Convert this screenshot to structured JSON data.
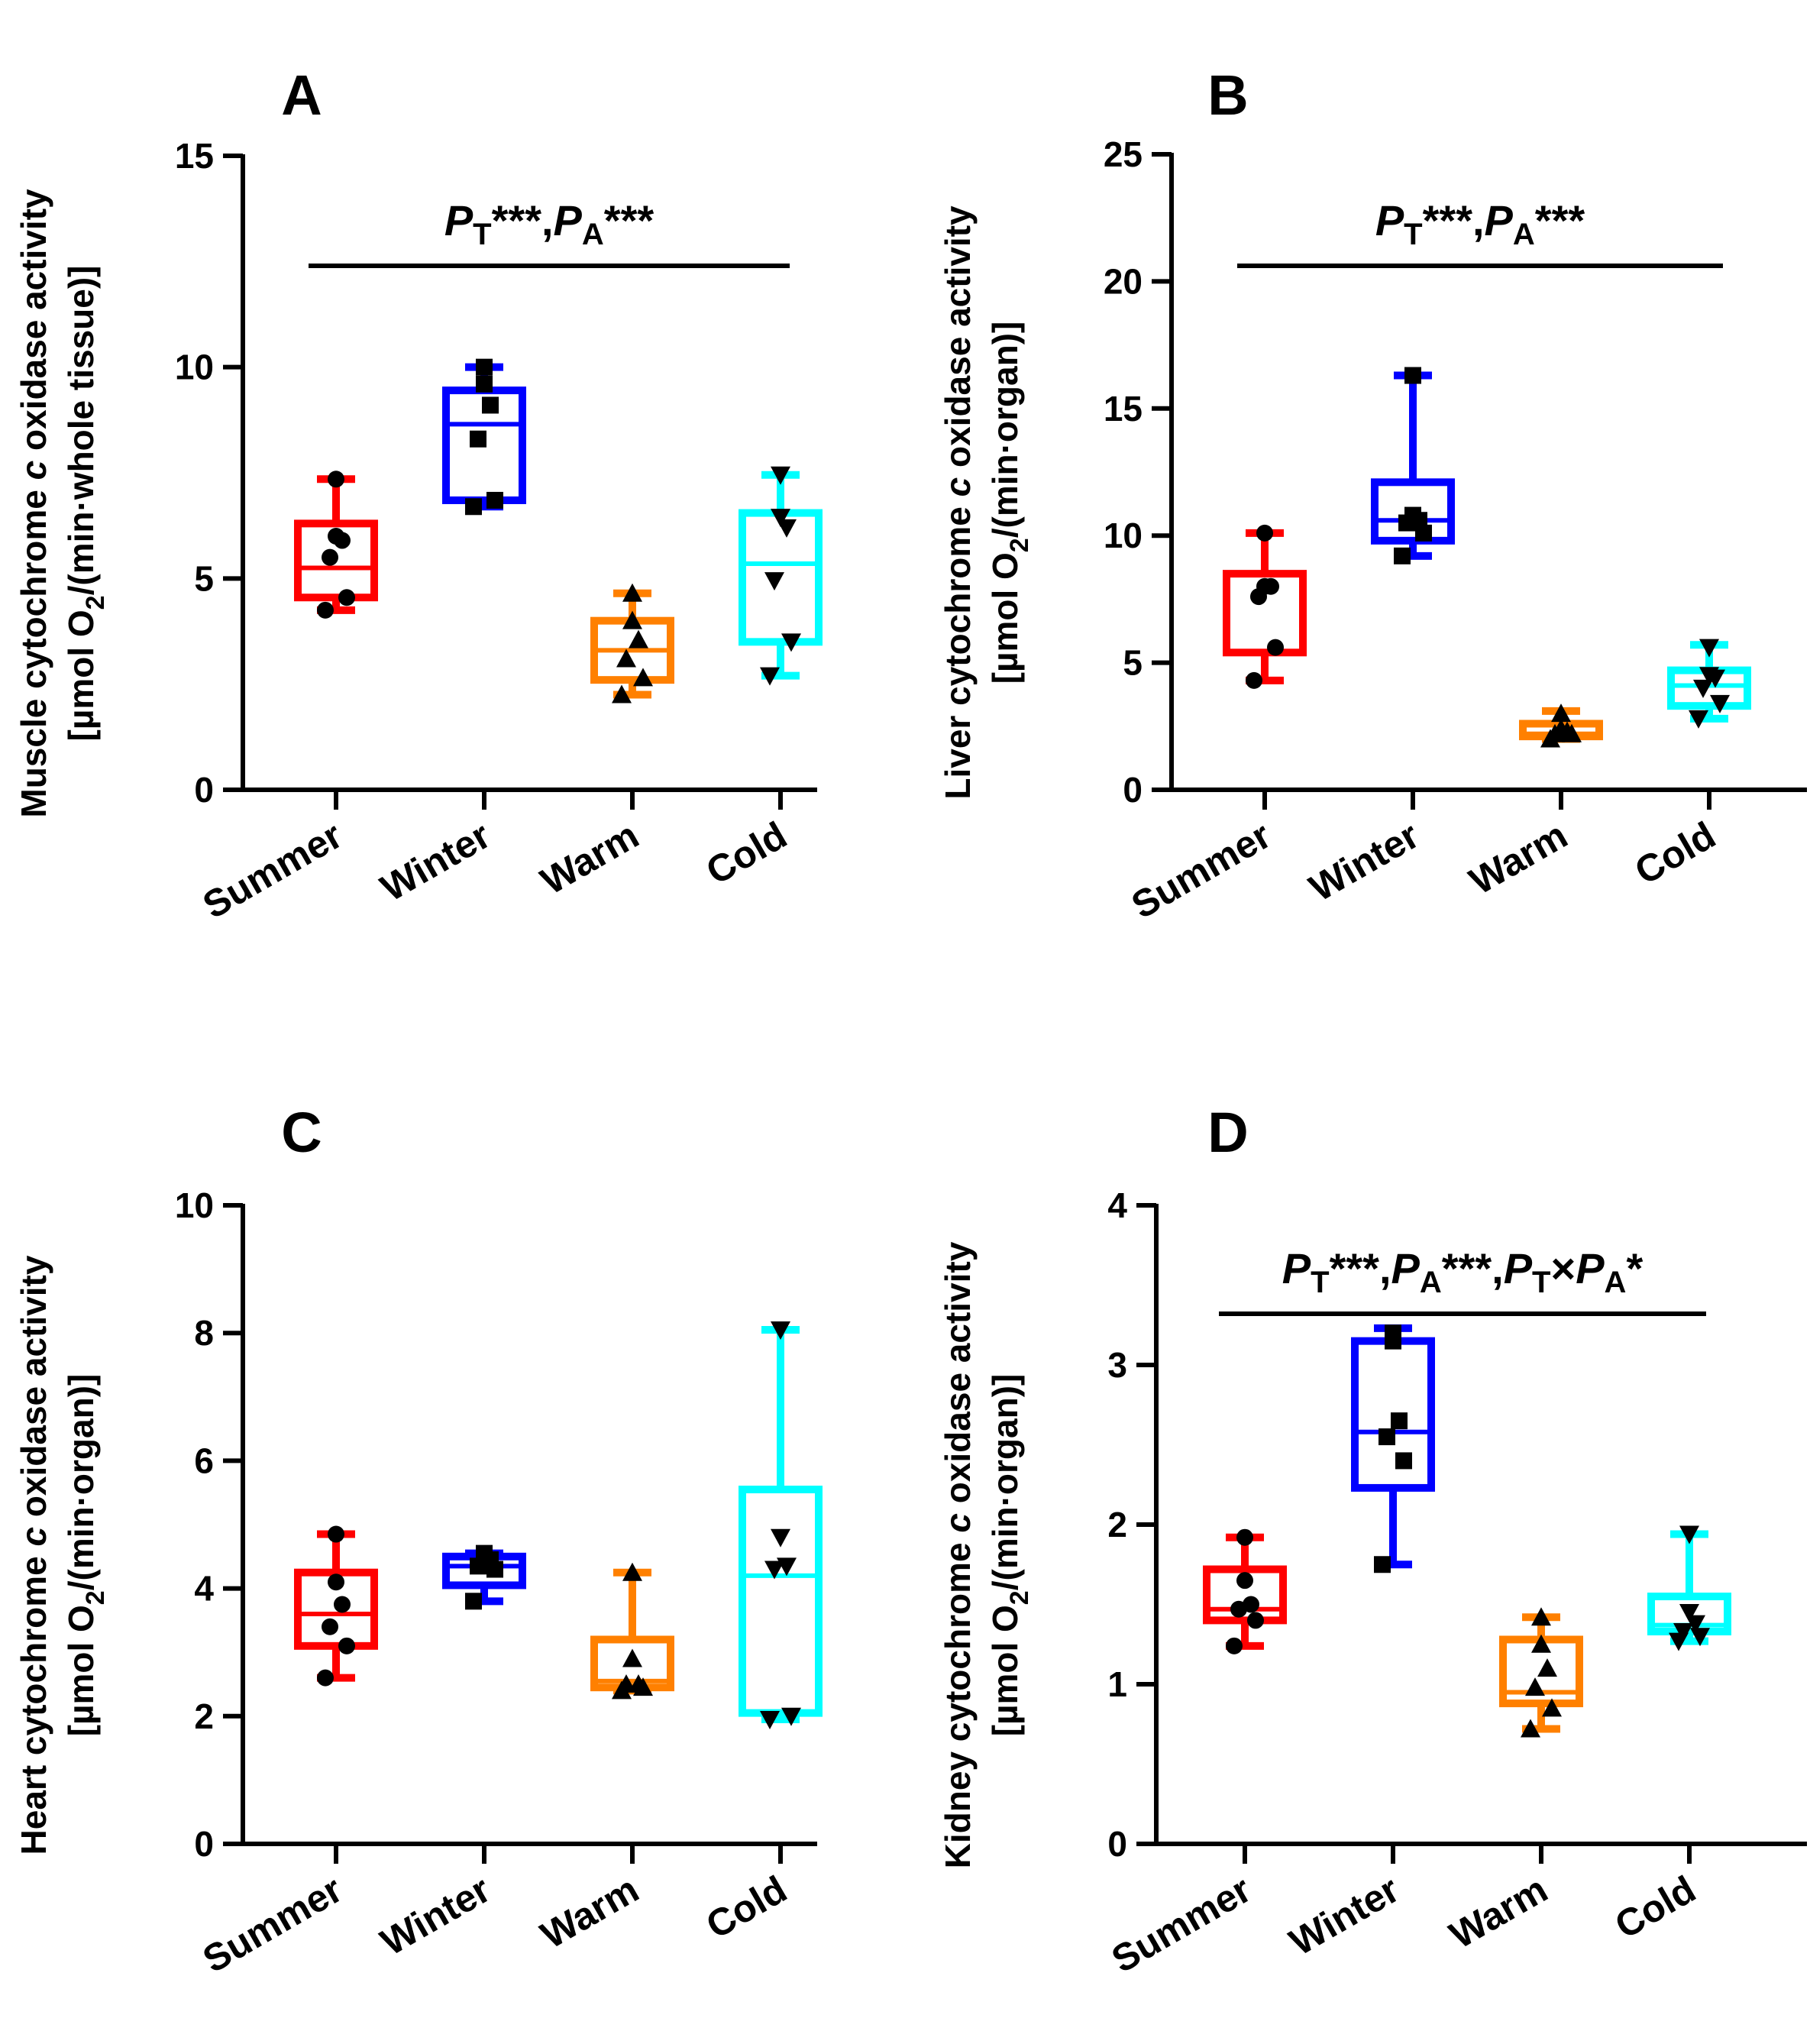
{
  "chart_data": [
    {
      "type": "box",
      "panel": "A",
      "ylabel": {
        "line1_pre": "Muscle cytochrome ",
        "line1_italic": "c",
        "line1_post": " oxidase activity",
        "line2_pre": "[µmol O",
        "line2_sub": "2",
        "line2_post": "/(min·whole tissue)]"
      },
      "ylim": [
        0,
        15
      ],
      "yticks": [
        "0",
        "5",
        "10",
        "15"
      ],
      "categories": [
        "Summer",
        "Winter",
        "Warm",
        "Cold"
      ],
      "significance": {
        "parts": [
          [
            "P",
            "T",
            "***,"
          ],
          [
            "P",
            "A",
            "***"
          ]
        ]
      },
      "groups": [
        {
          "name": "Summer",
          "color": "#ff0000",
          "marker": "circle",
          "min": 4.25,
          "q1": 4.55,
          "median": 5.25,
          "q3": 6.3,
          "max": 7.35,
          "points": [
            4.25,
            4.55,
            5.5,
            5.9,
            6.0,
            7.35
          ]
        },
        {
          "name": "Winter",
          "color": "#0000ff",
          "marker": "square",
          "min": 6.7,
          "q1": 6.85,
          "median": 8.65,
          "q3": 9.45,
          "max": 10.0,
          "points": [
            6.7,
            6.85,
            8.3,
            9.1,
            9.6,
            10.0
          ]
        },
        {
          "name": "Warm",
          "color": "#ff8000",
          "marker": "triangle-up",
          "min": 2.25,
          "q1": 2.6,
          "median": 3.3,
          "q3": 4.0,
          "max": 4.65,
          "points": [
            2.25,
            2.65,
            3.1,
            3.55,
            4.0,
            4.65
          ]
        },
        {
          "name": "Cold",
          "color": "#00ffff",
          "marker": "triangle-down",
          "min": 2.7,
          "q1": 3.5,
          "median": 5.35,
          "q3": 6.55,
          "max": 7.45,
          "points": [
            2.7,
            3.5,
            4.95,
            6.2,
            6.45,
            7.45
          ]
        }
      ]
    },
    {
      "type": "box",
      "panel": "B",
      "ylabel": {
        "line1_pre": "Liver cytochrome ",
        "line1_italic": "c",
        "line1_post": " oxidase activity",
        "line2_pre": "[µmol O",
        "line2_sub": "2",
        "line2_post": "/(min·organ)]"
      },
      "ylim": [
        0,
        25
      ],
      "yticks": [
        "0",
        "5",
        "10",
        "15",
        "20",
        "25"
      ],
      "categories": [
        "Summer",
        "Winter",
        "Warm",
        "Cold"
      ],
      "significance": {
        "parts": [
          [
            "P",
            "T",
            "***,"
          ],
          [
            "P",
            "A",
            "***"
          ]
        ]
      },
      "groups": [
        {
          "name": "Summer",
          "color": "#ff0000",
          "marker": "circle",
          "min": 4.3,
          "q1": 5.4,
          "median": 5.4,
          "q3": 8.5,
          "max": 10.1,
          "points": [
            4.3,
            5.6,
            7.6,
            8.0,
            8.0,
            10.1
          ]
        },
        {
          "name": "Winter",
          "color": "#0000ff",
          "marker": "square",
          "min": 9.2,
          "q1": 9.8,
          "median": 10.6,
          "q3": 12.1,
          "max": 16.3,
          "points": [
            9.2,
            10.1,
            10.5,
            10.6,
            10.8,
            16.3
          ]
        },
        {
          "name": "Warm",
          "color": "#ff8000",
          "marker": "triangle-up",
          "min": 2.0,
          "q1": 2.1,
          "median": 2.2,
          "q3": 2.6,
          "max": 3.1,
          "points": [
            2.0,
            2.2,
            2.2,
            2.3,
            2.4,
            3.0
          ]
        },
        {
          "name": "Cold",
          "color": "#00ffff",
          "marker": "triangle-down",
          "min": 2.8,
          "q1": 3.3,
          "median": 4.1,
          "q3": 4.7,
          "max": 5.7,
          "points": [
            2.8,
            3.4,
            4.0,
            4.4,
            4.5,
            5.6
          ]
        }
      ]
    },
    {
      "type": "box",
      "panel": "C",
      "ylabel": {
        "line1_pre": "Heart cytochrome ",
        "line1_italic": "c",
        "line1_post": " oxidase activity",
        "line2_pre": "[µmol O",
        "line2_sub": "2",
        "line2_post": "/(min·organ)]"
      },
      "ylim": [
        0,
        10
      ],
      "yticks": [
        "0",
        "2",
        "4",
        "6",
        "8",
        "10"
      ],
      "categories": [
        "Summer",
        "Winter",
        "Warm",
        "Cold"
      ],
      "significance": null,
      "groups": [
        {
          "name": "Summer",
          "color": "#ff0000",
          "marker": "circle",
          "min": 2.6,
          "q1": 3.1,
          "median": 3.6,
          "q3": 4.25,
          "max": 4.85,
          "points": [
            2.6,
            3.1,
            3.4,
            3.75,
            4.1,
            4.85
          ]
        },
        {
          "name": "Winter",
          "color": "#0000ff",
          "marker": "square",
          "min": 3.8,
          "q1": 4.05,
          "median": 4.35,
          "q3": 4.5,
          "max": 4.55,
          "points": [
            3.8,
            4.3,
            4.35,
            4.45,
            4.5,
            4.55
          ]
        },
        {
          "name": "Warm",
          "color": "#ff8000",
          "marker": "triangle-up",
          "min": 2.4,
          "q1": 2.45,
          "median": 2.55,
          "q3": 3.2,
          "max": 4.25,
          "points": [
            2.4,
            2.45,
            2.5,
            2.5,
            2.9,
            4.25
          ]
        },
        {
          "name": "Cold",
          "color": "#00ffff",
          "marker": "triangle-down",
          "min": 1.95,
          "q1": 2.05,
          "median": 4.2,
          "q3": 5.55,
          "max": 8.05,
          "points": [
            1.95,
            2.0,
            4.3,
            4.35,
            4.8,
            8.05
          ]
        }
      ]
    },
    {
      "type": "box",
      "panel": "D",
      "ylabel": {
        "line1_pre": "Kidney cytochrome ",
        "line1_italic": "c",
        "line1_post": " oxidase activity",
        "line2_pre": "[µmol O",
        "line2_sub": "2",
        "line2_post": "/(min·organ)]"
      },
      "ylim": [
        0,
        4
      ],
      "yticks": [
        "0",
        "1",
        "2",
        "3",
        "4"
      ],
      "categories": [
        "Summer",
        "Winter",
        "Warm",
        "Cold"
      ],
      "significance": {
        "parts": [
          [
            "P",
            "T",
            "***,"
          ],
          [
            "P",
            "A",
            "***,"
          ],
          [
            "P",
            "T",
            "×"
          ],
          [
            "P",
            "A",
            "*"
          ]
        ]
      },
      "groups": [
        {
          "name": "Summer",
          "color": "#ff0000",
          "marker": "circle",
          "min": 1.24,
          "q1": 1.4,
          "median": 1.47,
          "q3": 1.72,
          "max": 1.92,
          "points": [
            1.24,
            1.4,
            1.47,
            1.5,
            1.65,
            1.92
          ]
        },
        {
          "name": "Winter",
          "color": "#0000ff",
          "marker": "square",
          "min": 1.75,
          "q1": 2.23,
          "median": 2.58,
          "q3": 3.15,
          "max": 3.23,
          "points": [
            1.75,
            2.4,
            2.55,
            2.65,
            3.15,
            3.2
          ]
        },
        {
          "name": "Warm",
          "color": "#ff8000",
          "marker": "triangle-up",
          "min": 0.72,
          "q1": 0.88,
          "median": 0.95,
          "q3": 1.28,
          "max": 1.42,
          "points": [
            0.72,
            0.85,
            0.98,
            1.1,
            1.25,
            1.42
          ]
        },
        {
          "name": "Cold",
          "color": "#00ffff",
          "marker": "triangle-down",
          "min": 1.27,
          "q1": 1.33,
          "median": 1.37,
          "q3": 1.55,
          "max": 1.94,
          "points": [
            1.27,
            1.3,
            1.33,
            1.38,
            1.45,
            1.94
          ]
        }
      ]
    }
  ]
}
